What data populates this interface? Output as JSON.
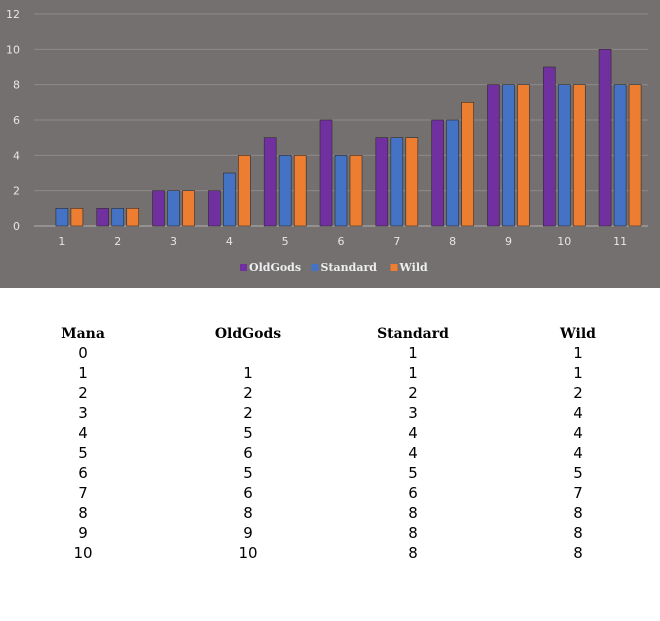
{
  "chart_data": {
    "type": "bar",
    "categories": [
      "1",
      "2",
      "3",
      "4",
      "5",
      "6",
      "7",
      "8",
      "9",
      "10",
      "11"
    ],
    "series": [
      {
        "name": "OldGods",
        "color": "#7030a0",
        "values": [
          0,
          1,
          2,
          2,
          5,
          6,
          5,
          6,
          8,
          9,
          10
        ]
      },
      {
        "name": "Standard",
        "color": "#4472c4",
        "values": [
          1,
          1,
          2,
          3,
          4,
          4,
          5,
          6,
          8,
          8,
          8
        ]
      },
      {
        "name": "Wild",
        "color": "#ed7d31",
        "values": [
          1,
          1,
          2,
          4,
          4,
          4,
          5,
          7,
          8,
          8,
          8
        ]
      }
    ],
    "ylim": [
      0,
      12
    ],
    "yticks": [
      "0",
      "2",
      "4",
      "6",
      "8",
      "10",
      "12"
    ],
    "grid": true,
    "legend": "bottom",
    "title": "",
    "xlabel": "",
    "ylabel": ""
  },
  "table": {
    "headers": [
      "Mana",
      "OldGods",
      "Standard",
      "Wild"
    ],
    "rows": [
      [
        "0",
        "",
        "1",
        "1"
      ],
      [
        "1",
        "1",
        "1",
        "1"
      ],
      [
        "2",
        "2",
        "2",
        "2"
      ],
      [
        "3",
        "2",
        "3",
        "4"
      ],
      [
        "4",
        "5",
        "4",
        "4"
      ],
      [
        "5",
        "6",
        "4",
        "4"
      ],
      [
        "6",
        "5",
        "5",
        "5"
      ],
      [
        "7",
        "6",
        "6",
        "7"
      ],
      [
        "8",
        "8",
        "8",
        "8"
      ],
      [
        "9",
        "9",
        "8",
        "8"
      ],
      [
        "10",
        "10",
        "8",
        "8"
      ]
    ]
  }
}
